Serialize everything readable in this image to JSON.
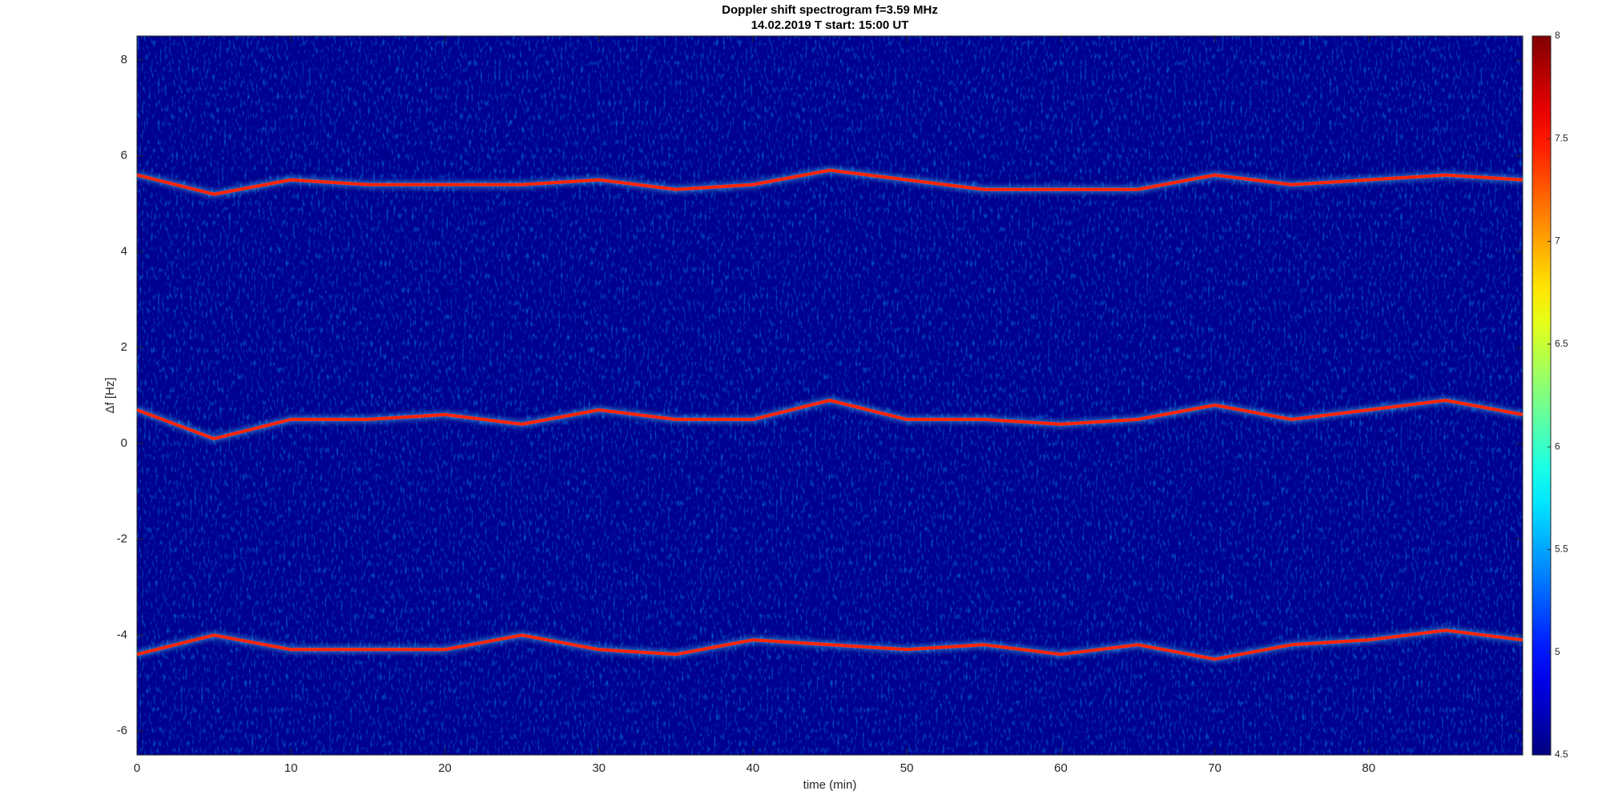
{
  "chart_data": {
    "type": "spectrogram",
    "title": "Doppler shift spectrogram f=3.59 MHz",
    "subtitle": "14.02.2019   T start: 15:00 UT",
    "x_label": "time (min)",
    "y_label": "Δf [Hz]",
    "x": [
      0,
      5,
      10,
      15,
      20,
      25,
      30,
      35,
      40,
      45,
      50,
      55,
      60,
      65,
      70,
      75,
      80,
      85,
      90
    ],
    "series": [
      {
        "color": "#ff2000",
        "values": [
          5.6,
          5.2,
          5.5,
          5.4,
          5.4,
          5.4,
          5.5,
          5.3,
          5.4,
          5.7,
          5.5,
          5.3,
          5.3,
          5.3,
          5.6,
          5.4,
          5.5,
          5.6,
          5.5
        ]
      },
      {
        "color": "#ff2000",
        "values": [
          0.7,
          0.1,
          0.5,
          0.5,
          0.6,
          0.4,
          0.7,
          0.5,
          0.5,
          0.9,
          0.5,
          0.5,
          0.4,
          0.5,
          0.8,
          0.5,
          0.7,
          0.9,
          0.6
        ]
      },
      {
        "color": "#ff2000",
        "values": [
          -4.4,
          -4.0,
          -4.3,
          -4.3,
          -4.3,
          -4.0,
          -4.3,
          -4.4,
          -4.1,
          -4.2,
          -4.3,
          -4.2,
          -4.4,
          -4.2,
          -4.5,
          -4.2,
          -4.1,
          -3.9,
          -4.1
        ]
      }
    ],
    "xlim": [
      0,
      90
    ],
    "xticks": [
      0,
      10,
      20,
      30,
      40,
      50,
      60,
      70,
      80
    ],
    "ylim": [
      -6.5,
      8.5
    ],
    "yticks": [
      -6,
      -4,
      -2,
      0,
      2,
      4,
      6,
      8
    ],
    "colormap": "jet",
    "clim": [
      4.5,
      8
    ],
    "cticks": [
      4.5,
      5,
      5.5,
      6,
      6.5,
      7,
      7.5,
      8
    ]
  }
}
